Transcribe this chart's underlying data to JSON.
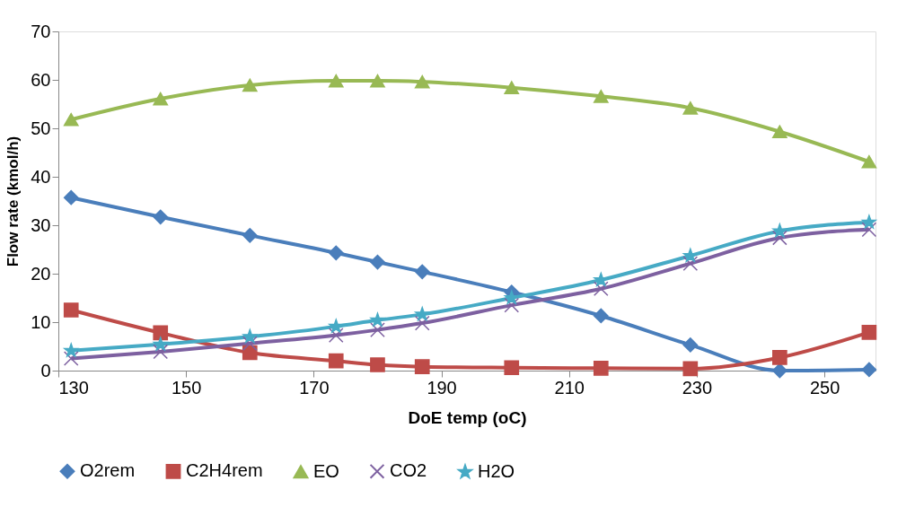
{
  "chart_data": {
    "type": "line",
    "xlabel": "DoE temp (oC)",
    "ylabel": "Flow rate (kmol/h)",
    "x": [
      132,
      146,
      160,
      173.5,
      180,
      187,
      201,
      215,
      229,
      243,
      257
    ],
    "xlim": [
      130,
      258
    ],
    "xticks": [
      130,
      150,
      170,
      190,
      210,
      230,
      250
    ],
    "ylim": [
      0,
      70
    ],
    "yticks": [
      0,
      10,
      20,
      30,
      40,
      50,
      60,
      70
    ],
    "grid": false,
    "legend": "bottom",
    "line_style": "solid",
    "series": [
      {
        "name": "O2rem",
        "color": "#4a7ebb",
        "marker": "diamond",
        "values": [
          35.7,
          31.7,
          27.9,
          24.3,
          22.4,
          20.4,
          16.2,
          11.3,
          5.3,
          0,
          0.2
        ]
      },
      {
        "name": "C2H4rem",
        "color": "#be4b48",
        "marker": "square",
        "values": [
          12.5,
          7.8,
          3.7,
          2.0,
          1.2,
          0.8,
          0.6,
          0.5,
          0.4,
          2.7,
          7.9
        ]
      },
      {
        "name": "EO",
        "color": "#98b954",
        "marker": "triangle",
        "values": [
          51.8,
          56.1,
          58.9,
          59.8,
          59.8,
          59.6,
          58.4,
          56.6,
          54.2,
          49.3,
          43.1
        ]
      },
      {
        "name": "CO2",
        "color": "#7d60a0",
        "marker": "cross",
        "values": [
          2.5,
          3.9,
          5.6,
          7.3,
          8.4,
          9.8,
          13.5,
          16.9,
          22.1,
          27.4,
          29.1
        ]
      },
      {
        "name": "H2O",
        "color": "#46aac5",
        "marker": "star",
        "values": [
          4.1,
          5.4,
          7.0,
          9.1,
          10.4,
          11.6,
          15.0,
          18.7,
          23.7,
          28.8,
          30.6
        ]
      }
    ]
  }
}
